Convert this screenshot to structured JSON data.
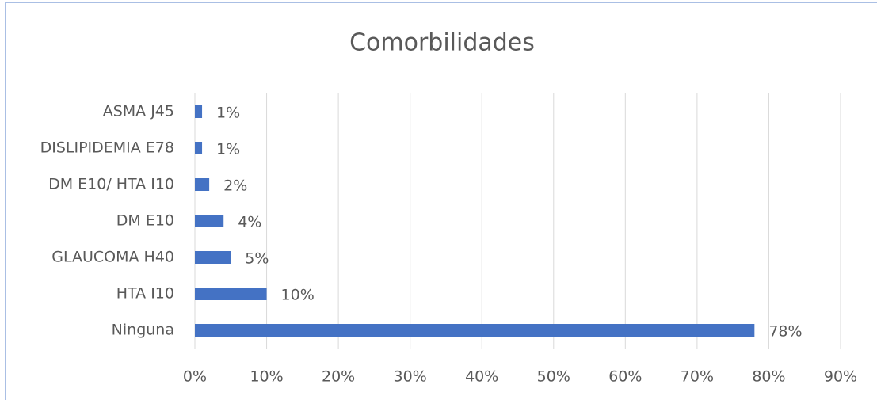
{
  "chart_data": {
    "type": "bar",
    "orientation": "horizontal",
    "title": "Comorbilidades",
    "categories": [
      "ASMA J45",
      "DISLIPIDEMIA E78",
      "DM E10/ HTA I10",
      "DM E10",
      "GLAUCOMA H40",
      "HTA I10",
      "Ninguna"
    ],
    "values": [
      1,
      1,
      2,
      4,
      5,
      10,
      78
    ],
    "value_labels": [
      "1%",
      "1%",
      "2%",
      "4%",
      "5%",
      "10%",
      "78%"
    ],
    "color": "#4472c4",
    "xlim": [
      0,
      90
    ],
    "xticks": [
      {
        "value": 0,
        "label": "0%"
      },
      {
        "value": 10,
        "label": "10%"
      },
      {
        "value": 20,
        "label": "20%"
      },
      {
        "value": 30,
        "label": "30%"
      },
      {
        "value": 40,
        "label": "40%"
      },
      {
        "value": 50,
        "label": "50%"
      },
      {
        "value": 60,
        "label": "60%"
      },
      {
        "value": 70,
        "label": "70%"
      },
      {
        "value": 80,
        "label": "80%"
      },
      {
        "value": 90,
        "label": "90%"
      }
    ],
    "grid": true
  }
}
